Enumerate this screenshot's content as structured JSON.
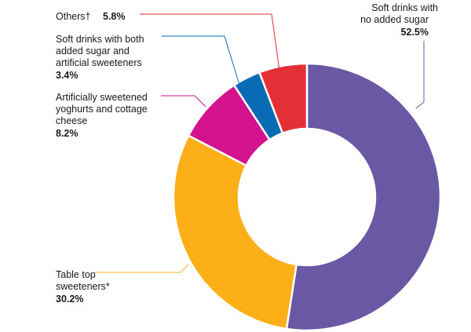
{
  "chart_data": {
    "type": "pie",
    "donut": true,
    "start": "top, clockwise",
    "slices": [
      {
        "label": [
          "Soft drinks with",
          "no added sugar"
        ],
        "value": 52.5,
        "value_text": "52.5%",
        "color": "#6b58a5"
      },
      {
        "label": [
          "Table top",
          "sweeteners*"
        ],
        "value": 30.2,
        "value_text": "30.2%",
        "color": "#fcaf17"
      },
      {
        "label": [
          "Artificially sweetened",
          "yoghurts and cottage",
          "cheese"
        ],
        "value": 8.2,
        "value_text": "8.2%",
        "color": "#d2138d"
      },
      {
        "label": [
          "Soft drinks with both",
          "added sugar and",
          "artificial sweeteners"
        ],
        "value": 3.4,
        "value_text": "3.4%",
        "color": "#0a6bb5"
      },
      {
        "label": [
          "Others†"
        ],
        "value": 5.8,
        "value_text": "5.8%",
        "color": "#e32f35"
      }
    ]
  }
}
